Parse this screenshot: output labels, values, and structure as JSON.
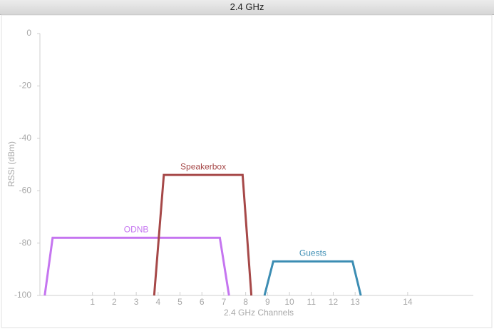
{
  "window_title": "2.4 GHz",
  "chart_data": {
    "type": "line",
    "x_label": "2.4 GHz Channels",
    "y_label": "RSSI (dBm)",
    "xlim": [
      2400,
      2499
    ],
    "ylim": [
      -100,
      0
    ],
    "xticks": [
      {
        "value": 2412,
        "label": "1"
      },
      {
        "value": 2417,
        "label": "2"
      },
      {
        "value": 2422,
        "label": "3"
      },
      {
        "value": 2427,
        "label": "4"
      },
      {
        "value": 2432,
        "label": "5"
      },
      {
        "value": 2437,
        "label": "6"
      },
      {
        "value": 2442,
        "label": "7"
      },
      {
        "value": 2447,
        "label": "8"
      },
      {
        "value": 2452,
        "label": "9"
      },
      {
        "value": 2457,
        "label": "10"
      },
      {
        "value": 2462,
        "label": "11"
      },
      {
        "value": 2467,
        "label": "12"
      },
      {
        "value": 2472,
        "label": "13"
      },
      {
        "value": 2484,
        "label": "14"
      }
    ],
    "yticks": [
      0,
      -20,
      -40,
      -60,
      -80,
      -100
    ],
    "series": [
      {
        "name": "ODNB",
        "color": "#c575f0",
        "x": [
          2401.1,
          2402.9,
          2441.1,
          2443.2
        ],
        "values": [
          -100,
          -78,
          -78,
          -100
        ]
      },
      {
        "name": "Speakerbox",
        "color": "#a64848",
        "x": [
          2426.1,
          2428.3,
          2446.3,
          2448.3
        ],
        "values": [
          -100,
          -54,
          -54,
          -100
        ]
      },
      {
        "name": "Guests",
        "color": "#3c8db3",
        "x": [
          2451.3,
          2453.3,
          2471.4,
          2473.3
        ],
        "values": [
          -100,
          -87,
          -87,
          -100
        ]
      }
    ]
  }
}
